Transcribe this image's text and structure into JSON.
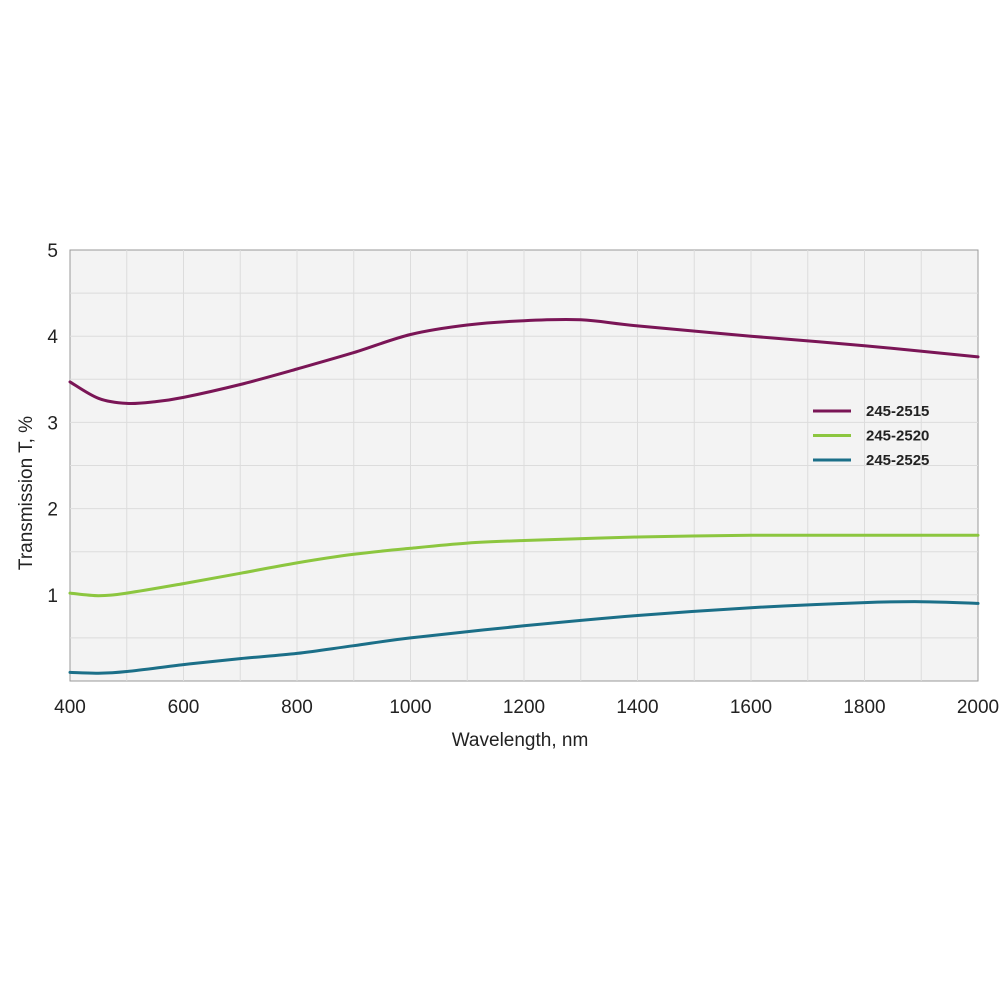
{
  "chart_data": {
    "type": "line",
    "xlabel": "Wavelength, nm",
    "ylabel": "Transmission T, %",
    "xlim": [
      400,
      2000
    ],
    "ylim": [
      0,
      5
    ],
    "x_ticks": [
      400,
      600,
      800,
      1000,
      1200,
      1400,
      1600,
      1800,
      2000
    ],
    "y_ticks": [
      1,
      2,
      3,
      4,
      5
    ],
    "grid": true,
    "legend_position": "right",
    "series": [
      {
        "name": "245-2515",
        "color": "#7a1556",
        "x": [
          400,
          450,
          500,
          550,
          600,
          700,
          800,
          900,
          1000,
          1100,
          1200,
          1300,
          1400,
          1600,
          1800,
          2000
        ],
        "y": [
          3.47,
          3.28,
          3.22,
          3.24,
          3.29,
          3.44,
          3.62,
          3.81,
          4.02,
          4.13,
          4.18,
          4.19,
          4.12,
          4.0,
          3.89,
          3.76
        ]
      },
      {
        "name": "245-2520",
        "color": "#8cc63f",
        "x": [
          400,
          450,
          500,
          600,
          700,
          800,
          900,
          1000,
          1100,
          1200,
          1400,
          1600,
          1800,
          2000
        ],
        "y": [
          1.02,
          0.99,
          1.02,
          1.13,
          1.25,
          1.37,
          1.47,
          1.54,
          1.6,
          1.63,
          1.67,
          1.69,
          1.69,
          1.69
        ]
      },
      {
        "name": "245-2525",
        "color": "#1b6f88",
        "x": [
          400,
          450,
          500,
          600,
          700,
          800,
          900,
          1000,
          1200,
          1400,
          1600,
          1800,
          1900,
          2000
        ],
        "y": [
          0.1,
          0.09,
          0.11,
          0.19,
          0.26,
          0.32,
          0.41,
          0.5,
          0.64,
          0.76,
          0.85,
          0.91,
          0.92,
          0.9
        ]
      }
    ]
  }
}
